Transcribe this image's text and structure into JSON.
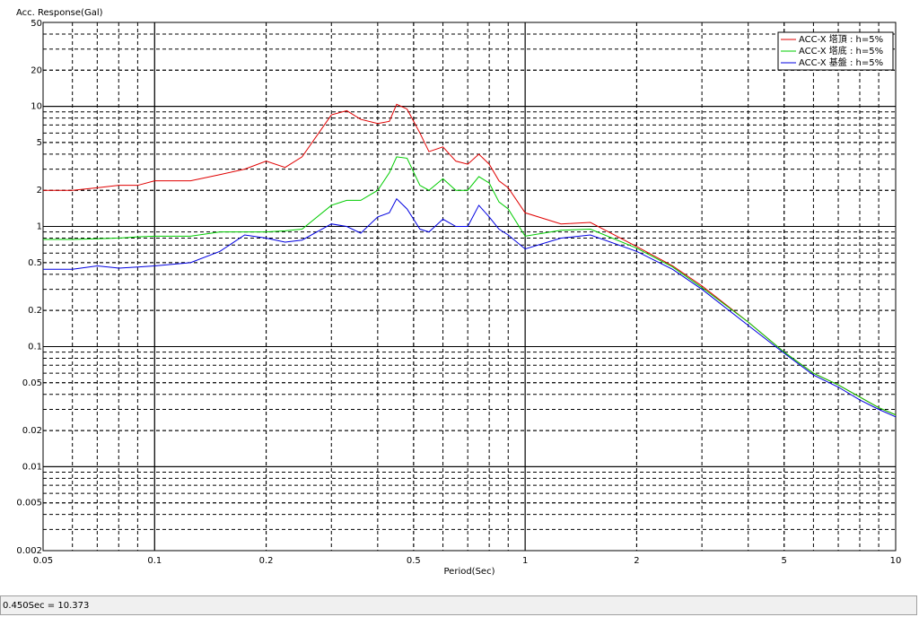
{
  "chart_data": {
    "type": "line",
    "ylabel": "Acc. Response(Gal)",
    "xlabel": "Period(Sec)",
    "xscale": "log",
    "yscale": "log",
    "xlim": [
      0.05,
      10
    ],
    "ylim": [
      0.002,
      50
    ],
    "xticks": [
      0.05,
      0.1,
      0.2,
      0.5,
      1,
      2,
      5,
      10
    ],
    "yticks": [
      0.002,
      0.005,
      0.01,
      0.02,
      0.05,
      0.1,
      0.2,
      0.5,
      1,
      2,
      5,
      10,
      20,
      50
    ],
    "grid": true,
    "minor_grid": true,
    "legend": "upper right",
    "x": [
      0.05,
      0.06,
      0.07,
      0.08,
      0.09,
      0.1,
      0.125,
      0.15,
      0.175,
      0.2,
      0.225,
      0.25,
      0.3,
      0.33,
      0.36,
      0.4,
      0.43,
      0.45,
      0.48,
      0.52,
      0.55,
      0.6,
      0.65,
      0.7,
      0.75,
      0.8,
      0.85,
      0.9,
      1.0,
      1.25,
      1.5,
      2,
      2.5,
      3,
      4,
      5,
      6,
      7,
      8,
      9,
      10
    ],
    "series": [
      {
        "name": "ACC-X 塔頂 : h=5%",
        "color": "#e00000",
        "values": [
          2.0,
          2.0,
          2.1,
          2.2,
          2.2,
          2.4,
          2.4,
          2.7,
          3.0,
          3.5,
          3.1,
          3.8,
          8.5,
          9.2,
          7.8,
          7.2,
          7.5,
          10.4,
          9.5,
          6.0,
          4.2,
          4.6,
          3.5,
          3.3,
          4.0,
          3.3,
          2.4,
          2.1,
          1.3,
          1.05,
          1.08,
          0.68,
          0.47,
          0.32,
          0.16,
          0.09,
          0.06,
          0.048,
          0.038,
          0.031,
          0.027
        ]
      },
      {
        "name": "ACC-X 塔底 : h=5%",
        "color": "#00cc00",
        "values": [
          0.78,
          0.78,
          0.79,
          0.8,
          0.82,
          0.83,
          0.83,
          0.9,
          0.9,
          0.9,
          0.92,
          0.95,
          1.5,
          1.65,
          1.65,
          2.0,
          2.8,
          3.8,
          3.7,
          2.2,
          2.0,
          2.5,
          2.0,
          2.0,
          2.6,
          2.3,
          1.6,
          1.4,
          0.83,
          0.93,
          0.95,
          0.66,
          0.46,
          0.31,
          0.16,
          0.09,
          0.06,
          0.048,
          0.038,
          0.031,
          0.027
        ]
      },
      {
        "name": "ACC-X 基盤 : h=5%",
        "color": "#0000e0",
        "values": [
          0.44,
          0.44,
          0.47,
          0.45,
          0.46,
          0.47,
          0.5,
          0.62,
          0.85,
          0.8,
          0.74,
          0.77,
          1.05,
          1.0,
          0.88,
          1.2,
          1.3,
          1.7,
          1.4,
          0.95,
          0.9,
          1.15,
          1.0,
          1.0,
          1.5,
          1.2,
          0.95,
          0.85,
          0.65,
          0.8,
          0.85,
          0.62,
          0.44,
          0.3,
          0.15,
          0.088,
          0.058,
          0.046,
          0.036,
          0.03,
          0.026
        ]
      }
    ]
  },
  "status_bar": {
    "text": "0.450Sec = 10.373"
  }
}
